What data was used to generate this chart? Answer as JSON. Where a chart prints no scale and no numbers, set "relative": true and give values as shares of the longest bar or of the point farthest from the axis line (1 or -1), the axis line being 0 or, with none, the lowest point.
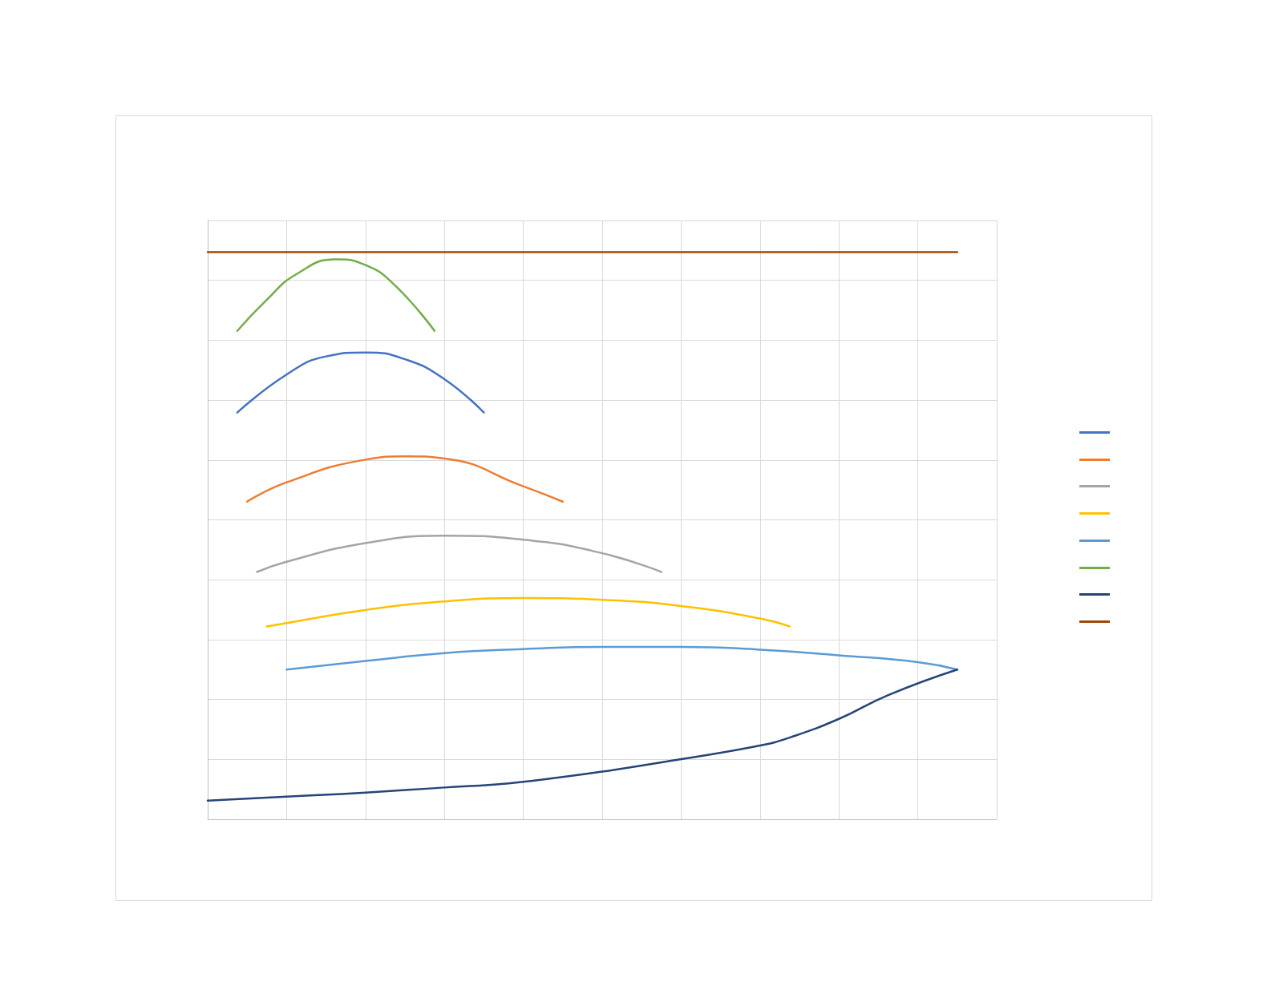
{
  "chart_data": {
    "type": "line",
    "relative": true,
    "grid": true,
    "marker": "none",
    "categories": [
      null,
      null,
      null,
      null,
      null,
      null,
      null,
      null,
      null,
      null,
      null,
      null,
      null,
      null,
      null,
      null,
      null,
      null,
      null,
      null,
      null,
      null,
      null,
      null,
      null,
      null,
      null,
      null,
      null,
      null,
      null,
      null,
      null,
      null,
      null,
      null,
      null,
      null,
      null,
      null,
      null,
      null,
      null,
      null,
      null,
      null,
      null,
      null,
      null,
      null,
      null,
      null,
      null,
      null,
      null,
      null,
      null,
      null,
      null,
      null,
      null,
      null,
      null,
      null,
      null,
      null,
      null,
      null,
      null,
      null,
      null,
      null,
      null,
      null,
      null,
      null,
      null,
      null,
      null,
      null,
      null
    ],
    "series": [
      {
        "color": "#4472c4",
        "values": [
          null,
          null,
          null,
          0.717,
          null,
          null,
          null,
          null,
          0.784,
          null,
          null,
          null,
          0.816,
          null,
          null,
          null,
          0.823,
          null,
          null,
          null,
          0.811,
          null,
          null,
          null,
          0.776,
          null,
          null,
          null,
          0.717,
          null,
          null,
          null,
          null,
          null,
          null,
          null,
          null,
          null,
          null,
          null,
          null,
          null,
          null,
          null,
          null,
          null,
          null,
          null,
          null,
          null,
          null,
          null,
          null,
          null,
          null,
          null,
          null,
          null,
          null,
          null,
          null,
          null,
          null,
          null,
          null,
          null,
          null,
          null,
          null,
          null,
          null,
          null,
          null,
          null,
          null,
          null,
          null,
          null,
          null,
          null,
          null
        ]
      },
      {
        "color": "#ed7d31",
        "values": [
          null,
          null,
          null,
          null,
          0.56,
          null,
          null,
          null,
          0.594,
          null,
          null,
          null,
          null,
          null,
          null,
          null,
          0.634,
          null,
          null,
          null,
          0.64,
          null,
          null,
          null,
          0.636,
          null,
          null,
          null,
          null,
          null,
          null,
          null,
          0.587,
          null,
          null,
          null,
          0.56,
          null,
          null,
          null,
          null,
          null,
          null,
          null,
          null,
          null,
          null,
          null,
          null,
          null,
          null,
          null,
          null,
          null,
          null,
          null,
          null,
          null,
          null,
          null,
          null,
          null,
          null,
          null,
          null,
          null,
          null,
          null,
          null,
          null,
          null,
          null,
          null,
          null,
          null,
          null,
          null,
          null,
          null,
          null,
          null
        ]
      },
      {
        "color": "#a5a5a5",
        "values": [
          null,
          null,
          null,
          null,
          null,
          0.436,
          null,
          null,
          0.454,
          null,
          null,
          null,
          null,
          null,
          null,
          null,
          0.487,
          null,
          null,
          null,
          null,
          null,
          null,
          null,
          0.5,
          null,
          null,
          null,
          null,
          null,
          null,
          null,
          0.493,
          null,
          null,
          null,
          null,
          null,
          null,
          null,
          0.469,
          null,
          null,
          null,
          null,
          null,
          0.436,
          null,
          null,
          null,
          null,
          null,
          null,
          null,
          null,
          null,
          null,
          null,
          null,
          null,
          null,
          null,
          null,
          null,
          null,
          null,
          null,
          null,
          null,
          null,
          null,
          null,
          null,
          null,
          null,
          null,
          null,
          null,
          null,
          null,
          null
        ]
      },
      {
        "color": "#ffc000",
        "values": [
          null,
          null,
          null,
          null,
          null,
          null,
          0.34,
          null,
          0.346,
          null,
          null,
          null,
          null,
          null,
          null,
          null,
          0.369,
          null,
          null,
          null,
          null,
          null,
          null,
          null,
          0.384,
          null,
          null,
          null,
          null,
          null,
          null,
          null,
          0.39,
          null,
          null,
          null,
          null,
          null,
          null,
          null,
          0.387,
          null,
          null,
          null,
          null,
          null,
          null,
          null,
          0.376,
          null,
          null,
          null,
          null,
          null,
          null,
          null,
          0.354,
          null,
          null,
          0.34,
          null,
          null,
          null,
          null,
          null,
          null,
          null,
          null,
          null,
          null,
          null,
          null,
          null,
          null,
          null,
          null,
          null,
          null,
          null,
          null,
          null
        ]
      },
      {
        "color": "#5b9bd5",
        "values": [
          null,
          null,
          null,
          null,
          null,
          null,
          null,
          null,
          0.264,
          null,
          null,
          null,
          null,
          null,
          null,
          null,
          0.279,
          null,
          null,
          null,
          null,
          null,
          null,
          null,
          0.293,
          null,
          null,
          null,
          null,
          null,
          null,
          null,
          0.3,
          null,
          null,
          null,
          null,
          null,
          null,
          null,
          0.304,
          null,
          null,
          null,
          null,
          null,
          null,
          null,
          0.304,
          null,
          null,
          null,
          null,
          null,
          null,
          null,
          0.299,
          null,
          null,
          null,
          null,
          null,
          null,
          null,
          0.289,
          null,
          null,
          null,
          null,
          null,
          null,
          null,
          0.277,
          null,
          null,
          null,
          0.264,
          null,
          null,
          null,
          null
        ]
      },
      {
        "color": "#70ad47",
        "values": [
          null,
          null,
          null,
          0.861,
          null,
          null,
          0.916,
          null,
          null,
          0.961,
          null,
          null,
          null,
          0.987,
          null,
          null,
          0.977,
          null,
          null,
          0.941,
          null,
          null,
          null,
          0.861,
          null,
          null,
          null,
          null,
          null,
          null,
          null,
          null,
          null,
          null,
          null,
          null,
          null,
          null,
          null,
          null,
          null,
          null,
          null,
          null,
          null,
          null,
          null,
          null,
          null,
          null,
          null,
          null,
          null,
          null,
          null,
          null,
          null,
          null,
          null,
          null,
          null,
          null,
          null,
          null,
          null,
          null,
          null,
          null,
          null,
          null,
          null,
          null,
          null,
          null,
          null,
          null,
          null,
          null,
          null,
          null,
          null
        ]
      },
      {
        "color": "#264478",
        "values": [
          0.033,
          null,
          null,
          null,
          null,
          null,
          null,
          null,
          0.04,
          null,
          null,
          null,
          null,
          null,
          null,
          null,
          0.047,
          null,
          null,
          null,
          null,
          null,
          null,
          null,
          0.056,
          null,
          null,
          null,
          null,
          0.061,
          null,
          null,
          0.066,
          null,
          null,
          null,
          null,
          null,
          null,
          null,
          0.084,
          null,
          null,
          null,
          null,
          null,
          null,
          null,
          0.106,
          null,
          null,
          null,
          null,
          null,
          null,
          null,
          0.13,
          null,
          null,
          0.144,
          null,
          null,
          null,
          null,
          0.177,
          null,
          null,
          null,
          null,
          0.219,
          null,
          null,
          null,
          null,
          null,
          null,
          0.264,
          null,
          null,
          null,
          null
        ]
      },
      {
        "color": "#9e480e",
        "values": [
          1,
          null,
          null,
          null,
          null,
          null,
          null,
          null,
          null,
          null,
          null,
          null,
          null,
          null,
          null,
          null,
          null,
          null,
          null,
          null,
          null,
          null,
          null,
          null,
          null,
          null,
          null,
          null,
          null,
          null,
          null,
          null,
          null,
          null,
          null,
          null,
          null,
          null,
          null,
          null,
          null,
          null,
          null,
          null,
          null,
          null,
          null,
          null,
          null,
          null,
          null,
          null,
          null,
          null,
          null,
          null,
          null,
          null,
          null,
          null,
          null,
          null,
          null,
          null,
          null,
          null,
          null,
          null,
          null,
          null,
          null,
          null,
          null,
          null,
          null,
          null,
          1,
          null,
          null,
          null,
          null
        ]
      }
    ]
  }
}
